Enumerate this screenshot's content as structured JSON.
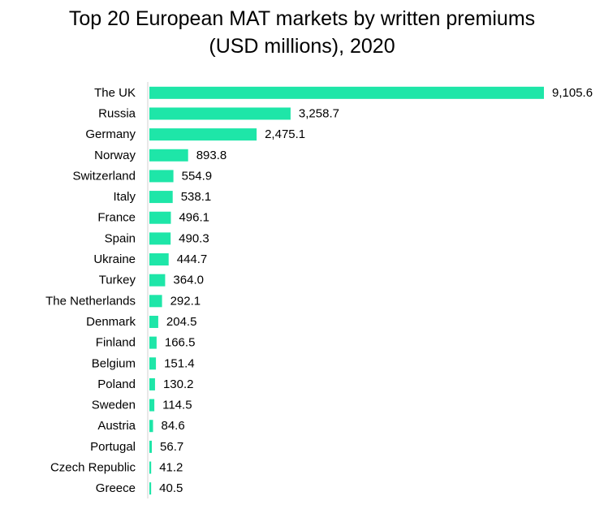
{
  "chart_data": {
    "type": "bar",
    "orientation": "horizontal",
    "title": "Top 20 European MAT markets by written premiums (USD millions), 2020",
    "categories": [
      "The UK",
      "Russia",
      "Germany",
      "Norway",
      "Switzerland",
      "Italy",
      "France",
      "Spain",
      "Ukraine",
      "Turkey",
      "The Netherlands",
      "Denmark",
      "Finland",
      "Belgium",
      "Poland",
      "Sweden",
      "Austria",
      "Portugal",
      "Czech Republic",
      "Greece"
    ],
    "values": [
      9105.6,
      3258.7,
      2475.1,
      893.8,
      554.9,
      538.1,
      496.1,
      490.3,
      444.7,
      364.0,
      292.1,
      204.5,
      166.5,
      151.4,
      130.2,
      114.5,
      84.6,
      56.7,
      41.2,
      40.5
    ],
    "value_labels": [
      "9,105.6",
      "3,258.7",
      "2,475.1",
      "893.8",
      "554.9",
      "538.1",
      "496.1",
      "490.3",
      "444.7",
      "364.0",
      "292.1",
      "204.5",
      "166.5",
      "151.4",
      "130.2",
      "114.5",
      "84.6",
      "56.7",
      "41.2",
      "40.5"
    ],
    "xlim": [
      0,
      9105.6
    ],
    "grid": false,
    "legend": "none",
    "bar_color": "#1ee6a8",
    "axis_color": "#d0d0d0"
  }
}
